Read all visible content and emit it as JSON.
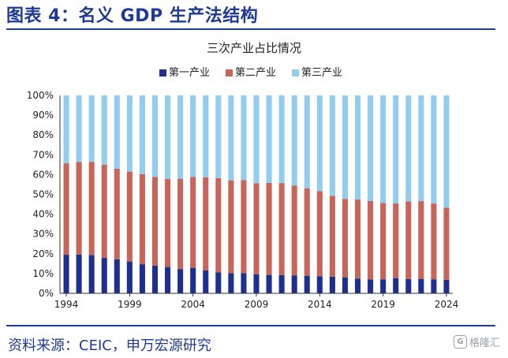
{
  "header": {
    "title": "图表 4：名义 GDP 生产法结构"
  },
  "footer": {
    "source": "资料来源：CEIC，申万宏源研究"
  },
  "watermark": {
    "logo": "G",
    "text": "格隆汇"
  },
  "chart_data": {
    "type": "bar",
    "stacked": true,
    "title": "三次产业占比情况",
    "xlabel": "",
    "ylabel": "",
    "ylim": [
      0,
      100
    ],
    "y_ticks": [
      "0%",
      "10%",
      "20%",
      "30%",
      "40%",
      "50%",
      "60%",
      "70%",
      "80%",
      "90%",
      "100%"
    ],
    "x_tick_labels": [
      "1994",
      "1999",
      "2004",
      "2009",
      "2014",
      "2019",
      "2024"
    ],
    "legend_position": "top-center",
    "categories": [
      "1994",
      "1995",
      "1996",
      "1997",
      "1998",
      "1999",
      "2000",
      "2001",
      "2002",
      "2003",
      "2004",
      "2005",
      "2006",
      "2007",
      "2008",
      "2009",
      "2010",
      "2011",
      "2012",
      "2013",
      "2014",
      "2015",
      "2016",
      "2017",
      "2018",
      "2019",
      "2020",
      "2021",
      "2022",
      "2023",
      "2024"
    ],
    "series": [
      {
        "name": "第一产业",
        "color": "#1f2f8f",
        "values": [
          19.5,
          19.6,
          19.3,
          17.9,
          17.2,
          16.1,
          14.7,
          14.0,
          13.3,
          12.3,
          12.9,
          11.6,
          10.6,
          10.2,
          10.2,
          9.6,
          9.3,
          9.2,
          9.1,
          8.9,
          8.6,
          8.4,
          8.1,
          7.5,
          7.0,
          7.1,
          7.7,
          7.2,
          7.3,
          7.1,
          6.8
        ]
      },
      {
        "name": "第二产业",
        "color": "#c8655a",
        "values": [
          46.2,
          46.8,
          47.1,
          47.1,
          45.8,
          45.4,
          45.5,
          44.8,
          44.5,
          45.6,
          45.9,
          47.0,
          47.6,
          46.9,
          47.0,
          46.0,
          46.5,
          46.5,
          45.4,
          44.2,
          43.1,
          40.8,
          39.6,
          39.9,
          39.7,
          38.6,
          37.8,
          39.3,
          39.3,
          38.3,
          36.5
        ]
      },
      {
        "name": "第三产业",
        "color": "#92ccee",
        "values": [
          34.3,
          33.6,
          33.6,
          35.0,
          37.0,
          38.5,
          39.8,
          41.2,
          42.2,
          42.1,
          41.2,
          41.4,
          41.8,
          42.9,
          42.8,
          44.4,
          44.2,
          44.3,
          45.5,
          46.9,
          48.3,
          50.8,
          52.3,
          52.6,
          53.3,
          54.3,
          54.5,
          53.5,
          53.4,
          54.6,
          56.7
        ]
      }
    ]
  }
}
